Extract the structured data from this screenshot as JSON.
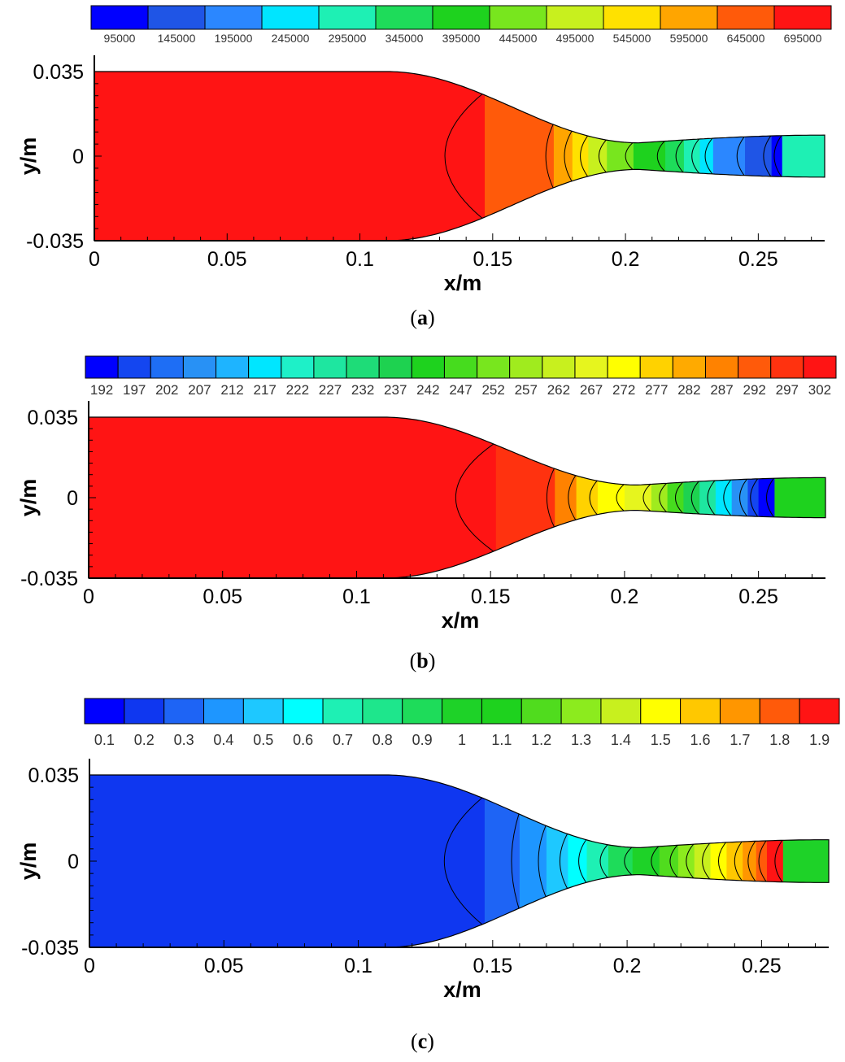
{
  "panels": [
    {
      "id": "a",
      "caption_letter": "a",
      "colorbar": {
        "labels": [
          "95000",
          "145000",
          "195000",
          "245000",
          "295000",
          "345000",
          "395000",
          "445000",
          "495000",
          "545000",
          "595000",
          "645000",
          "695000"
        ],
        "colors": [
          "#0000ff",
          "#1f55e6",
          "#2b87ff",
          "#00e5ff",
          "#1ef0b4",
          "#1edc5a",
          "#1ed21e",
          "#78e61e",
          "#c8f01e",
          "#ffe100",
          "#ffa500",
          "#ff5a0a",
          "#ff1414"
        ]
      },
      "chart_data": {
        "type": "heatmap",
        "title": "",
        "xlabel": "x/m",
        "ylabel": "y/m",
        "xlim": [
          0,
          0.275
        ],
        "ylim": [
          -0.035,
          0.035
        ],
        "x_ticks": [
          "0",
          "0.05",
          "0.1",
          "0.15",
          "0.2",
          "0.25"
        ],
        "x_tick_values": [
          0,
          0.05,
          0.1,
          0.15,
          0.2,
          0.25
        ],
        "y_ticks": [
          "0.035",
          "0",
          "-0.035"
        ],
        "y_tick_values": [
          0.035,
          0,
          -0.035
        ],
        "bands": [
          {
            "x": 0.0,
            "color": "#ff1414"
          },
          {
            "x": 0.147,
            "color": "#ff5a0a"
          },
          {
            "x": 0.173,
            "color": "#ffa500"
          },
          {
            "x": 0.18,
            "color": "#ffe100"
          },
          {
            "x": 0.186,
            "color": "#c8f01e"
          },
          {
            "x": 0.193,
            "color": "#78e61e"
          },
          {
            "x": 0.203,
            "color": "#1ed21e"
          },
          {
            "x": 0.215,
            "color": "#1edc5a"
          },
          {
            "x": 0.222,
            "color": "#1ef0b4"
          },
          {
            "x": 0.228,
            "color": "#00e5ff"
          },
          {
            "x": 0.233,
            "color": "#2b87ff"
          },
          {
            "x": 0.245,
            "color": "#1f55e6"
          },
          {
            "x": 0.255,
            "color": "#0000ff"
          },
          {
            "x": 0.259,
            "color": "#1ef0b4"
          }
        ]
      }
    },
    {
      "id": "b",
      "caption_letter": "b",
      "colorbar": {
        "labels": [
          "192",
          "197",
          "202",
          "207",
          "212",
          "217",
          "222",
          "227",
          "232",
          "237",
          "242",
          "247",
          "252",
          "257",
          "262",
          "267",
          "272",
          "277",
          "282",
          "287",
          "292",
          "297",
          "302"
        ],
        "colors": [
          "#0000ff",
          "#1446f0",
          "#1e6ef5",
          "#2891f5",
          "#1eb4ff",
          "#00e6ff",
          "#1ef0c8",
          "#1ee6a0",
          "#1edc78",
          "#1ed250",
          "#1ed21e",
          "#46dc1e",
          "#78e61e",
          "#a0eb1e",
          "#c8f01e",
          "#e6f51e",
          "#ffff00",
          "#ffd200",
          "#ffaa00",
          "#ff8200",
          "#ff5a0a",
          "#ff320f",
          "#ff1414"
        ]
      },
      "chart_data": {
        "type": "heatmap",
        "title": "",
        "xlabel": "x/m",
        "ylabel": "y/m",
        "xlim": [
          0,
          0.275
        ],
        "ylim": [
          -0.035,
          0.035
        ],
        "x_ticks": [
          "0",
          "0.05",
          "0.1",
          "0.15",
          "0.2",
          "0.25"
        ],
        "x_tick_values": [
          0,
          0.05,
          0.1,
          0.15,
          0.2,
          0.25
        ],
        "y_ticks": [
          "0.035",
          "0",
          "-0.035"
        ],
        "y_tick_values": [
          0.035,
          0,
          -0.035
        ],
        "bands": [
          {
            "x": 0.0,
            "color": "#ff1414"
          },
          {
            "x": 0.152,
            "color": "#ff320f"
          },
          {
            "x": 0.174,
            "color": "#ff8200"
          },
          {
            "x": 0.182,
            "color": "#ffd200"
          },
          {
            "x": 0.19,
            "color": "#ffff00"
          },
          {
            "x": 0.2,
            "color": "#e6f51e"
          },
          {
            "x": 0.21,
            "color": "#a0eb1e"
          },
          {
            "x": 0.216,
            "color": "#46dc1e"
          },
          {
            "x": 0.222,
            "color": "#1ed250"
          },
          {
            "x": 0.228,
            "color": "#1ee6a0"
          },
          {
            "x": 0.234,
            "color": "#00e6ff"
          },
          {
            "x": 0.24,
            "color": "#2891f5"
          },
          {
            "x": 0.246,
            "color": "#1446f0"
          },
          {
            "x": 0.25,
            "color": "#0000ff"
          },
          {
            "x": 0.256,
            "color": "#1ed21e"
          }
        ]
      }
    },
    {
      "id": "c",
      "caption_letter": "c",
      "colorbar": {
        "labels": [
          "0.1",
          "0.2",
          "0.3",
          "0.4",
          "0.5",
          "0.6",
          "0.7",
          "0.8",
          "0.9",
          "1",
          "1.1",
          "1.2",
          "1.3",
          "1.4",
          "1.5",
          "1.6",
          "1.7",
          "1.8",
          "1.9"
        ],
        "colors": [
          "#0000ff",
          "#0f37f0",
          "#1e64f5",
          "#1e96ff",
          "#1ec8ff",
          "#00ffff",
          "#1ef0b4",
          "#1ee68c",
          "#1edc5a",
          "#1ed228",
          "#1ed21e",
          "#50dc1e",
          "#8ceb1e",
          "#c8f01e",
          "#ffff00",
          "#ffc800",
          "#ff9600",
          "#ff5a0a",
          "#ff1414"
        ]
      },
      "chart_data": {
        "type": "heatmap",
        "title": "",
        "xlabel": "x/m",
        "ylabel": "y/m",
        "xlim": [
          0,
          0.275
        ],
        "ylim": [
          -0.035,
          0.035
        ],
        "x_ticks": [
          "0",
          "0.05",
          "0.1",
          "0.15",
          "0.2",
          "0.25"
        ],
        "x_tick_values": [
          0,
          0.05,
          0.1,
          0.15,
          0.2,
          0.25
        ],
        "y_ticks": [
          "0.035",
          "0",
          "-0.035"
        ],
        "y_tick_values": [
          0.035,
          0,
          -0.035
        ],
        "bands": [
          {
            "x": 0.0,
            "color": "#0f37f0"
          },
          {
            "x": 0.147,
            "color": "#1e64f5"
          },
          {
            "x": 0.16,
            "color": "#1e96ff"
          },
          {
            "x": 0.17,
            "color": "#1ec8ff"
          },
          {
            "x": 0.178,
            "color": "#00ffff"
          },
          {
            "x": 0.185,
            "color": "#1ef0b4"
          },
          {
            "x": 0.193,
            "color": "#1edc5a"
          },
          {
            "x": 0.202,
            "color": "#1ed228"
          },
          {
            "x": 0.212,
            "color": "#50dc1e"
          },
          {
            "x": 0.219,
            "color": "#8ceb1e"
          },
          {
            "x": 0.225,
            "color": "#c8f01e"
          },
          {
            "x": 0.231,
            "color": "#ffff00"
          },
          {
            "x": 0.237,
            "color": "#ffc800"
          },
          {
            "x": 0.243,
            "color": "#ff9600"
          },
          {
            "x": 0.248,
            "color": "#ff5a0a"
          },
          {
            "x": 0.252,
            "color": "#ff1414"
          },
          {
            "x": 0.258,
            "color": "#1ed228"
          }
        ]
      }
    }
  ]
}
